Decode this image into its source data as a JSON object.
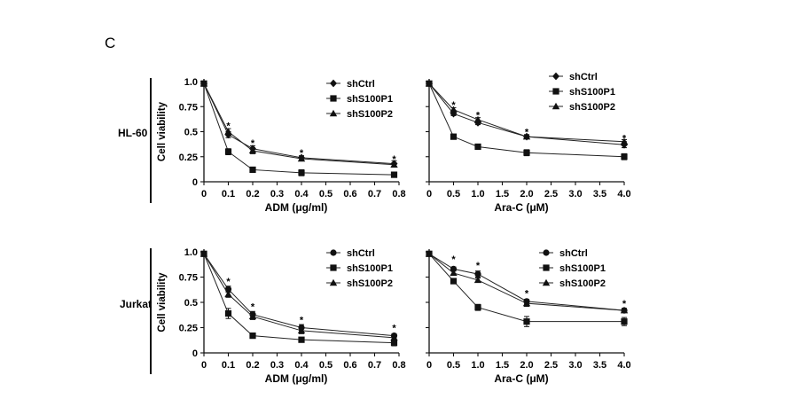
{
  "figure": {
    "panel_letter": "C"
  },
  "chart_data": [
    {
      "type": "line",
      "row_label": "HL-60",
      "ylabel": "Cell viability",
      "xlabel": "ADM (μg/ml)",
      "xticks": [
        "0",
        "0.1",
        "0.2",
        "0.3",
        "0.4",
        "0.5",
        "0.6",
        "0.7",
        "0.8"
      ],
      "xtick_values": [
        0,
        0.1,
        0.2,
        0.3,
        0.4,
        0.5,
        0.6,
        0.7,
        0.8
      ],
      "yticks": [
        "0",
        "0.25",
        "0.5",
        "0.75",
        "1.0"
      ],
      "ytick_values": [
        0,
        0.25,
        0.5,
        0.75,
        1.0
      ],
      "xlim": [
        0,
        0.8
      ],
      "ylim": [
        0,
        1.0
      ],
      "x": [
        0,
        0.1,
        0.2,
        0.4,
        0.78
      ],
      "series": [
        {
          "name": "shCtrl",
          "marker": "diamond",
          "values": [
            0.98,
            0.47,
            0.33,
            0.24,
            0.18
          ],
          "err": [
            0.01,
            0.03,
            0.03,
            0.02,
            0.03
          ]
        },
        {
          "name": "shS100P1",
          "marker": "square",
          "values": [
            0.98,
            0.3,
            0.12,
            0.09,
            0.07
          ],
          "err": [
            0.01,
            0.03,
            0.02,
            0.03,
            0.02
          ]
        },
        {
          "name": "shS100P2",
          "marker": "triangle",
          "values": [
            0.98,
            0.5,
            0.31,
            0.23,
            0.17
          ],
          "err": [
            0.01,
            0.03,
            0.03,
            0.02,
            0.02
          ]
        }
      ],
      "significance": [
        {
          "x": 0.1,
          "y": 0.56,
          "label": "*"
        },
        {
          "x": 0.2,
          "y": 0.39,
          "label": "*"
        },
        {
          "x": 0.4,
          "y": 0.29,
          "label": "*"
        },
        {
          "x": 0.78,
          "y": 0.23,
          "label": "*"
        }
      ],
      "legend": "top-right"
    },
    {
      "type": "line",
      "row_label": "",
      "ylabel": "",
      "xlabel": "Ara-C (μM)",
      "xticks": [
        "0",
        "0.5",
        "1.0",
        "1.5",
        "2.0",
        "2.5",
        "3.0",
        "3.5",
        "4.0"
      ],
      "xtick_values": [
        0,
        0.5,
        1.0,
        1.5,
        2.0,
        2.5,
        3.0,
        3.5,
        4.0
      ],
      "yticks": [],
      "ytick_values": [
        0,
        0.25,
        0.5,
        0.75,
        1.0
      ],
      "xlim": [
        0,
        4.0
      ],
      "ylim": [
        0,
        1.0
      ],
      "x": [
        0,
        0.5,
        1.0,
        2.0,
        4.0
      ],
      "series": [
        {
          "name": "shCtrl",
          "marker": "diamond",
          "values": [
            0.98,
            0.68,
            0.59,
            0.45,
            0.37
          ],
          "err": [
            0.01,
            0.02,
            0.02,
            0.02,
            0.03
          ]
        },
        {
          "name": "shS100P1",
          "marker": "square",
          "values": [
            0.98,
            0.45,
            0.35,
            0.29,
            0.25
          ],
          "err": [
            0.01,
            0.02,
            0.02,
            0.03,
            0.03
          ]
        },
        {
          "name": "shS100P2",
          "marker": "triangle",
          "values": [
            0.98,
            0.72,
            0.62,
            0.45,
            0.4
          ],
          "err": [
            0.01,
            0.02,
            0.02,
            0.02,
            0.02
          ]
        }
      ],
      "significance": [
        {
          "x": 0.5,
          "y": 0.77,
          "label": "*"
        },
        {
          "x": 1.0,
          "y": 0.67,
          "label": "*"
        },
        {
          "x": 2.0,
          "y": 0.5,
          "label": "*"
        },
        {
          "x": 4.0,
          "y": 0.44,
          "label": "*"
        }
      ],
      "legend": "top-right"
    },
    {
      "type": "line",
      "row_label": "Jurkat",
      "ylabel": "Cell viability",
      "xlabel": "ADM (μg/ml)",
      "xticks": [
        "0",
        "0.1",
        "0.2",
        "0.3",
        "0.4",
        "0.5",
        "0.6",
        "0.7",
        "0.8"
      ],
      "xtick_values": [
        0,
        0.1,
        0.2,
        0.3,
        0.4,
        0.5,
        0.6,
        0.7,
        0.8
      ],
      "yticks": [
        "0",
        "0.25",
        "0.5",
        "0.75",
        "1.0"
      ],
      "ytick_values": [
        0,
        0.25,
        0.5,
        0.75,
        1.0
      ],
      "xlim": [
        0,
        0.8
      ],
      "ylim": [
        0,
        1.0
      ],
      "x": [
        0,
        0.1,
        0.2,
        0.4,
        0.78
      ],
      "series": [
        {
          "name": "shCtrl",
          "marker": "circle",
          "values": [
            0.98,
            0.63,
            0.38,
            0.25,
            0.17
          ],
          "err": [
            0.01,
            0.03,
            0.03,
            0.03,
            0.02
          ]
        },
        {
          "name": "shS100P1",
          "marker": "square",
          "values": [
            0.98,
            0.39,
            0.17,
            0.13,
            0.1
          ],
          "err": [
            0.01,
            0.05,
            0.02,
            0.02,
            0.03
          ]
        },
        {
          "name": "shS100P2",
          "marker": "triangle",
          "values": [
            0.98,
            0.58,
            0.36,
            0.22,
            0.15
          ],
          "err": [
            0.01,
            0.03,
            0.03,
            0.03,
            0.02
          ]
        }
      ],
      "significance": [
        {
          "x": 0.1,
          "y": 0.71,
          "label": "*"
        },
        {
          "x": 0.2,
          "y": 0.46,
          "label": "*"
        },
        {
          "x": 0.4,
          "y": 0.33,
          "label": "*"
        },
        {
          "x": 0.78,
          "y": 0.25,
          "label": "*"
        }
      ],
      "legend": "top-right"
    },
    {
      "type": "line",
      "row_label": "",
      "ylabel": "",
      "xlabel": "Ara-C (μM)",
      "xticks": [
        "0",
        "0.5",
        "1.0",
        "1.5",
        "2.0",
        "2.5",
        "3.0",
        "3.5",
        "4.0"
      ],
      "xtick_values": [
        0,
        0.5,
        1.0,
        1.5,
        2.0,
        2.5,
        3.0,
        3.5,
        4.0
      ],
      "yticks": [],
      "ytick_values": [
        0,
        0.25,
        0.5,
        0.75,
        1.0
      ],
      "xlim": [
        0,
        4.0
      ],
      "ylim": [
        0,
        1.0
      ],
      "x": [
        0,
        0.5,
        1.0,
        2.0,
        4.0
      ],
      "series": [
        {
          "name": "shCtrl",
          "marker": "circle",
          "values": [
            0.98,
            0.83,
            0.78,
            0.51,
            0.42
          ],
          "err": [
            0.01,
            0.02,
            0.03,
            0.02,
            0.02
          ]
        },
        {
          "name": "shS100P1",
          "marker": "square",
          "values": [
            0.98,
            0.71,
            0.45,
            0.31,
            0.31
          ],
          "err": [
            0.01,
            0.02,
            0.03,
            0.05,
            0.04
          ]
        },
        {
          "name": "shS100P2",
          "marker": "triangle",
          "values": [
            0.98,
            0.79,
            0.72,
            0.49,
            0.42
          ],
          "err": [
            0.01,
            0.02,
            0.02,
            0.03,
            0.02
          ]
        }
      ],
      "significance": [
        {
          "x": 0.5,
          "y": 0.93,
          "label": "*"
        },
        {
          "x": 1.0,
          "y": 0.87,
          "label": "*"
        },
        {
          "x": 2.0,
          "y": 0.59,
          "label": "*"
        },
        {
          "x": 4.0,
          "y": 0.49,
          "label": "*"
        }
      ],
      "legend": "top-right"
    }
  ]
}
